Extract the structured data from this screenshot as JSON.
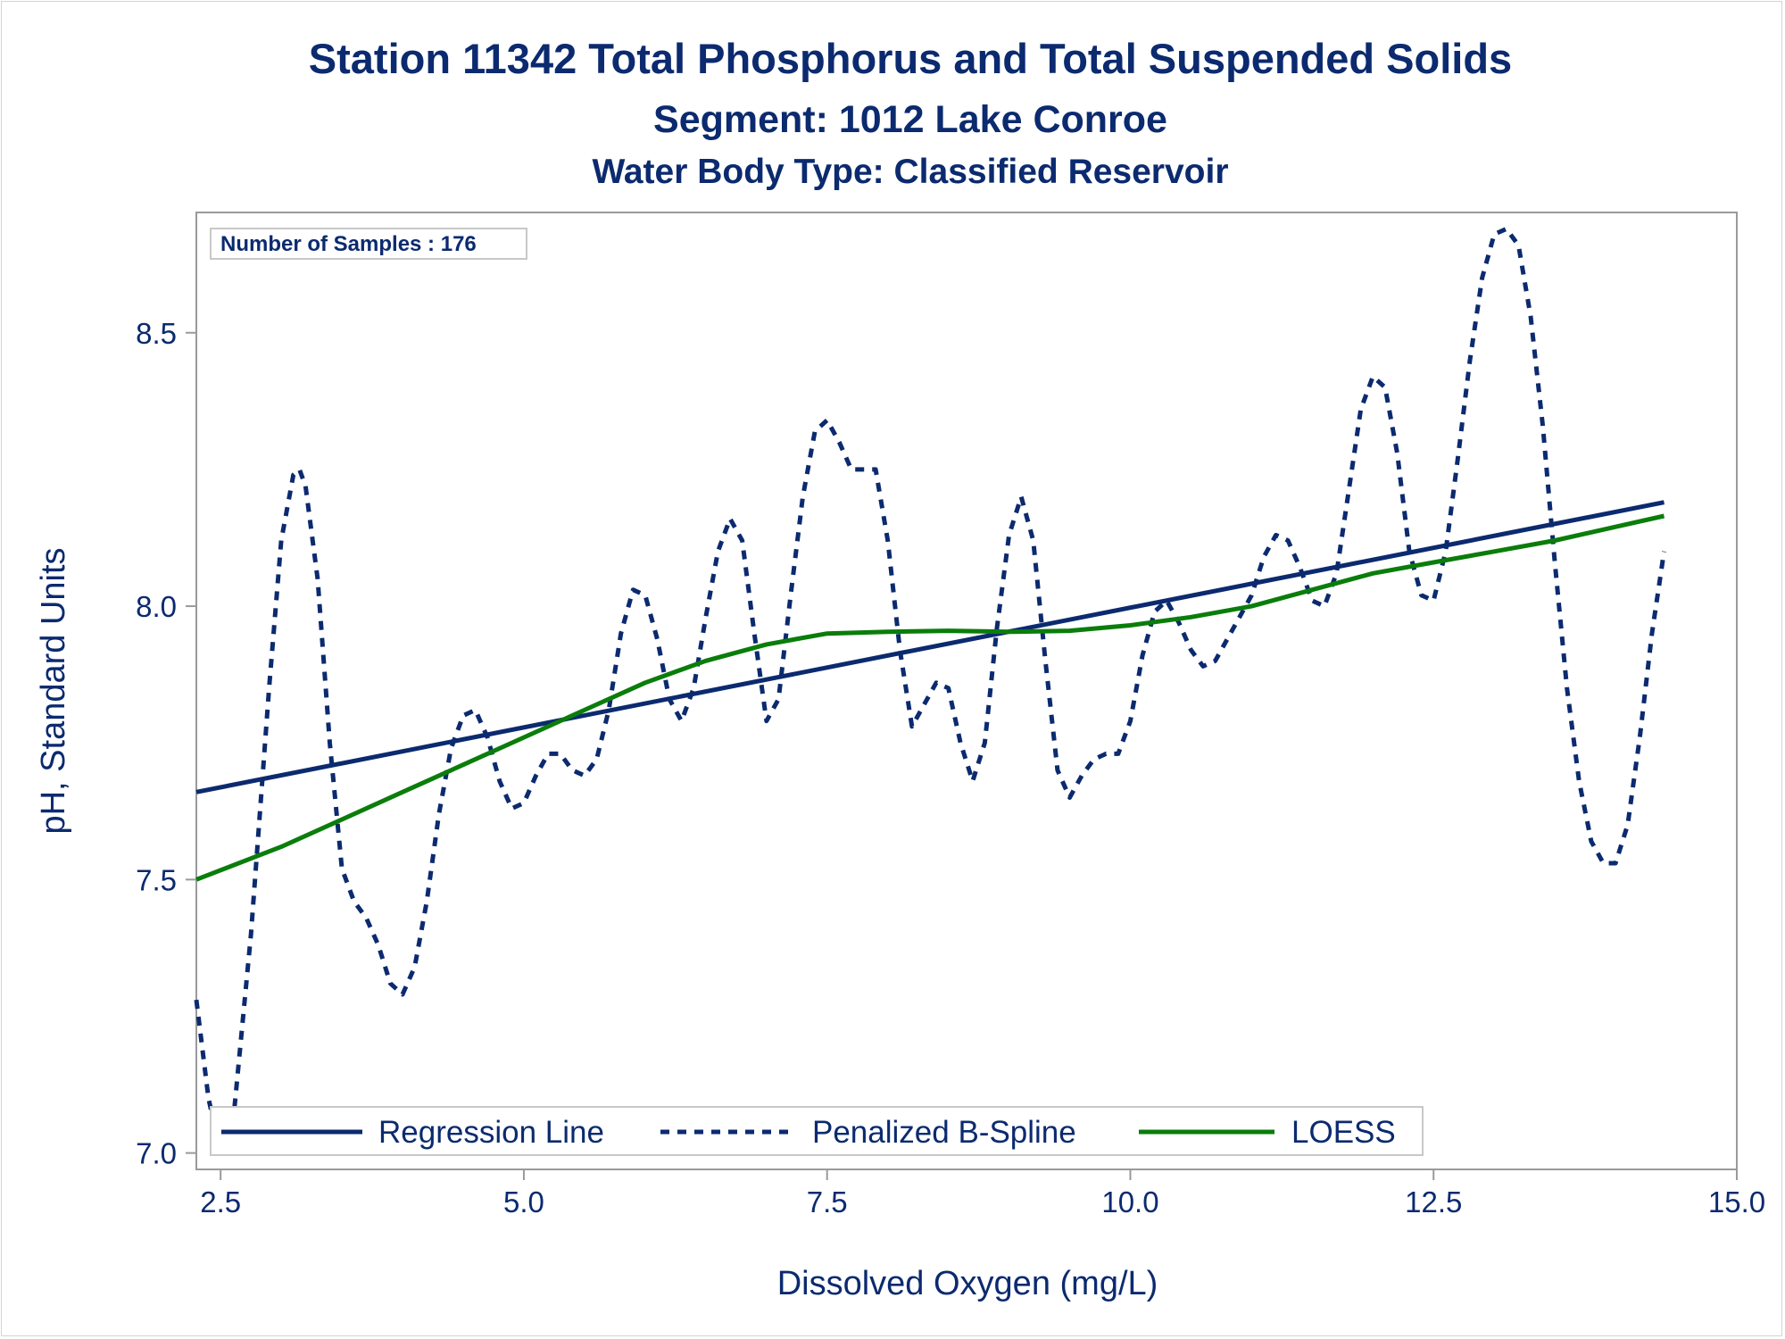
{
  "colors": {
    "text": "#0b2a6f",
    "regression": "#0b2a6f",
    "spline": "#0b2a6f",
    "loess": "#0a7d0a",
    "axis": "#9a9a9a"
  },
  "chart_data": {
    "type": "line",
    "title": "Station 11342  Total Phosphorus and Total Suspended Solids",
    "subtitle": "Segment: 1012  Lake Conroe",
    "subtitle2": "Water Body Type: Classified Reservoir",
    "xlabel": "Dissolved Oxygen (mg/L)",
    "ylabel": "pH, Standard Units",
    "xlim": [
      2.3,
      15.0
    ],
    "ylim": [
      6.97,
      8.72
    ],
    "xticks": [
      2.5,
      5.0,
      7.5,
      10.0,
      12.5,
      15.0
    ],
    "xtick_labels": [
      "2.5",
      "5.0",
      "7.5",
      "10.0",
      "12.5",
      "15.0"
    ],
    "yticks": [
      7.0,
      7.5,
      8.0,
      8.5
    ],
    "ytick_labels": [
      "7.0",
      "7.5",
      "8.0",
      "8.5"
    ],
    "inset_label": "Number of Samples : 176",
    "legend_position": "bottom-left inside",
    "grid": false,
    "series": [
      {
        "name": "Regression Line",
        "style": "solid",
        "x": [
          2.3,
          14.4
        ],
        "y": [
          7.66,
          8.19
        ]
      },
      {
        "name": "Penalized B-Spline",
        "style": "dashed",
        "x": [
          2.3,
          2.4,
          2.5,
          2.6,
          2.75,
          2.9,
          3.0,
          3.1,
          3.15,
          3.2,
          3.3,
          3.4,
          3.5,
          3.6,
          3.7,
          3.8,
          3.9,
          4.0,
          4.1,
          4.2,
          4.3,
          4.4,
          4.5,
          4.6,
          4.7,
          4.8,
          4.9,
          5.0,
          5.1,
          5.2,
          5.3,
          5.4,
          5.5,
          5.6,
          5.7,
          5.8,
          5.9,
          6.0,
          6.1,
          6.2,
          6.3,
          6.4,
          6.5,
          6.6,
          6.7,
          6.8,
          6.9,
          7.0,
          7.1,
          7.2,
          7.3,
          7.4,
          7.5,
          7.6,
          7.7,
          7.8,
          7.9,
          8.0,
          8.1,
          8.2,
          8.3,
          8.4,
          8.5,
          8.6,
          8.7,
          8.8,
          8.9,
          9.0,
          9.1,
          9.2,
          9.3,
          9.4,
          9.5,
          9.6,
          9.7,
          9.8,
          9.9,
          10.0,
          10.1,
          10.2,
          10.3,
          10.4,
          10.5,
          10.6,
          10.7,
          10.8,
          10.9,
          11.0,
          11.1,
          11.2,
          11.3,
          11.4,
          11.5,
          11.6,
          11.7,
          11.8,
          11.9,
          12.0,
          12.1,
          12.2,
          12.3,
          12.4,
          12.5,
          12.6,
          12.7,
          12.8,
          12.9,
          13.0,
          13.1,
          13.2,
          13.3,
          13.4,
          13.5,
          13.6,
          13.7,
          13.8,
          13.9,
          14.0,
          14.1,
          14.2,
          14.3,
          14.4
        ],
        "y": [
          7.28,
          7.1,
          7.0,
          7.05,
          7.4,
          7.85,
          8.12,
          8.24,
          8.25,
          8.22,
          8.05,
          7.75,
          7.52,
          7.46,
          7.43,
          7.38,
          7.31,
          7.29,
          7.34,
          7.46,
          7.62,
          7.74,
          7.8,
          7.81,
          7.76,
          7.68,
          7.63,
          7.64,
          7.69,
          7.73,
          7.73,
          7.7,
          7.69,
          7.72,
          7.81,
          7.95,
          8.03,
          8.02,
          7.94,
          7.83,
          7.79,
          7.85,
          7.98,
          8.1,
          8.16,
          8.12,
          7.95,
          7.79,
          7.83,
          8.02,
          8.2,
          8.32,
          8.34,
          8.3,
          8.25,
          8.25,
          8.25,
          8.12,
          7.92,
          7.78,
          7.82,
          7.86,
          7.85,
          7.75,
          7.68,
          7.75,
          7.96,
          8.13,
          8.2,
          8.12,
          7.9,
          7.7,
          7.65,
          7.69,
          7.72,
          7.73,
          7.73,
          7.79,
          7.91,
          7.99,
          8.01,
          7.97,
          7.92,
          7.89,
          7.9,
          7.94,
          7.98,
          8.02,
          8.09,
          8.13,
          8.12,
          8.07,
          8.01,
          8.0,
          8.06,
          8.21,
          8.36,
          8.42,
          8.4,
          8.28,
          8.1,
          8.02,
          8.01,
          8.1,
          8.27,
          8.45,
          8.6,
          8.68,
          8.69,
          8.66,
          8.53,
          8.33,
          8.08,
          7.85,
          7.68,
          7.57,
          7.53,
          7.53,
          7.6,
          7.76,
          7.95,
          8.1
        ]
      },
      {
        "name": "LOESS",
        "style": "solid",
        "x": [
          2.3,
          3.0,
          3.5,
          4.0,
          4.5,
          5.0,
          5.5,
          6.0,
          6.5,
          7.0,
          7.5,
          8.0,
          8.5,
          9.0,
          9.5,
          10.0,
          10.5,
          11.0,
          11.5,
          12.0,
          12.5,
          13.0,
          13.5,
          14.0,
          14.4
        ],
        "y": [
          7.5,
          7.56,
          7.61,
          7.66,
          7.71,
          7.76,
          7.81,
          7.86,
          7.9,
          7.93,
          7.95,
          7.953,
          7.955,
          7.953,
          7.955,
          7.965,
          7.98,
          8.0,
          8.03,
          8.06,
          8.08,
          8.1,
          8.12,
          8.145,
          8.165
        ]
      }
    ]
  }
}
